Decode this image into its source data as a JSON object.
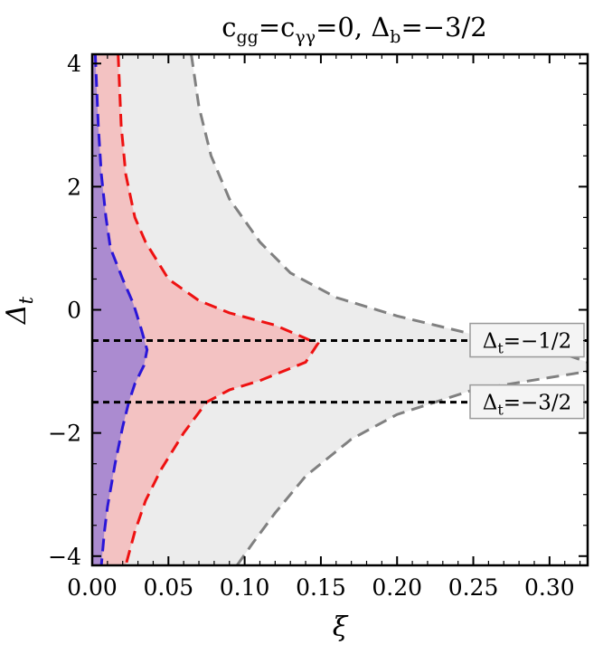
{
  "chart_data": {
    "type": "area",
    "title_parts": {
      "c1": "c",
      "c1_sub": "gg",
      "eq1": "=",
      "c2": "c",
      "c2_sub": "γγ",
      "eq2": "=0, ",
      "delta": "Δ",
      "delta_sub": "b",
      "value": "=−3/2"
    },
    "xlabel": "ξ",
    "ylabel": "Δ",
    "ylabel_sub": "t",
    "xlim": [
      0,
      0.325
    ],
    "ylim": [
      -4.15,
      4.15
    ],
    "x_ticks": [
      {
        "value": 0.0,
        "label": "0.00"
      },
      {
        "value": 0.05,
        "label": "0.05"
      },
      {
        "value": 0.1,
        "label": "0.10"
      },
      {
        "value": 0.15,
        "label": "0.15"
      },
      {
        "value": 0.2,
        "label": "0.20"
      },
      {
        "value": 0.25,
        "label": "0.25"
      },
      {
        "value": 0.3,
        "label": "0.30"
      }
    ],
    "y_ticks": [
      {
        "value": 4,
        "label": "4"
      },
      {
        "value": 2,
        "label": "2"
      },
      {
        "value": 0,
        "label": "0"
      },
      {
        "value": -2,
        "label": "−2"
      },
      {
        "value": -4,
        "label": "−4"
      }
    ],
    "grid": false,
    "regions": [
      {
        "fill": "#ececec",
        "line_color": "#808080",
        "points": [
          [
            0.065,
            4.15
          ],
          [
            0.07,
            3.3
          ],
          [
            0.078,
            2.5
          ],
          [
            0.09,
            1.8
          ],
          [
            0.11,
            1.1
          ],
          [
            0.13,
            0.6
          ],
          [
            0.16,
            0.2
          ],
          [
            0.2,
            -0.1
          ],
          [
            0.25,
            -0.4
          ],
          [
            0.285,
            -0.55
          ],
          [
            0.31,
            -0.72
          ],
          [
            0.325,
            -0.85
          ],
          [
            0.325,
            -1.0
          ],
          [
            0.3,
            -1.1
          ],
          [
            0.25,
            -1.3
          ],
          [
            0.2,
            -1.7
          ],
          [
            0.17,
            -2.1
          ],
          [
            0.14,
            -2.7
          ],
          [
            0.12,
            -3.3
          ],
          [
            0.105,
            -3.8
          ],
          [
            0.095,
            -4.15
          ]
        ]
      },
      {
        "fill": "#f3c2c2",
        "line_color": "#ee1111",
        "points": [
          [
            0.017,
            4.15
          ],
          [
            0.019,
            3.0
          ],
          [
            0.022,
            2.2
          ],
          [
            0.028,
            1.5
          ],
          [
            0.035,
            1.1
          ],
          [
            0.05,
            0.5
          ],
          [
            0.07,
            0.15
          ],
          [
            0.09,
            -0.05
          ],
          [
            0.12,
            -0.25
          ],
          [
            0.148,
            -0.55
          ],
          [
            0.14,
            -0.85
          ],
          [
            0.11,
            -1.15
          ],
          [
            0.09,
            -1.3
          ],
          [
            0.075,
            -1.5
          ],
          [
            0.06,
            -2.0
          ],
          [
            0.045,
            -2.6
          ],
          [
            0.035,
            -3.1
          ],
          [
            0.028,
            -3.6
          ],
          [
            0.022,
            -4.15
          ]
        ]
      },
      {
        "fill": "#ab8bd0",
        "line_color": "#2a16d8",
        "points": [
          [
            0.002,
            4.15
          ],
          [
            0.004,
            3.0
          ],
          [
            0.006,
            2.2
          ],
          [
            0.009,
            1.5
          ],
          [
            0.012,
            1.0
          ],
          [
            0.02,
            0.5
          ],
          [
            0.027,
            0.1
          ],
          [
            0.032,
            -0.3
          ],
          [
            0.036,
            -0.65
          ],
          [
            0.034,
            -0.9
          ],
          [
            0.028,
            -1.2
          ],
          [
            0.024,
            -1.5
          ],
          [
            0.02,
            -1.9
          ],
          [
            0.015,
            -2.5
          ],
          [
            0.01,
            -3.2
          ],
          [
            0.008,
            -3.6
          ],
          [
            0.006,
            -4.15
          ]
        ]
      }
    ],
    "reference_lines": [
      {
        "y": -0.5,
        "label_base": "Δ",
        "label_sub": "t",
        "label_value": "=−1/2"
      },
      {
        "y": -1.5,
        "label_base": "Δ",
        "label_sub": "t",
        "label_value": "=−3/2"
      }
    ]
  }
}
